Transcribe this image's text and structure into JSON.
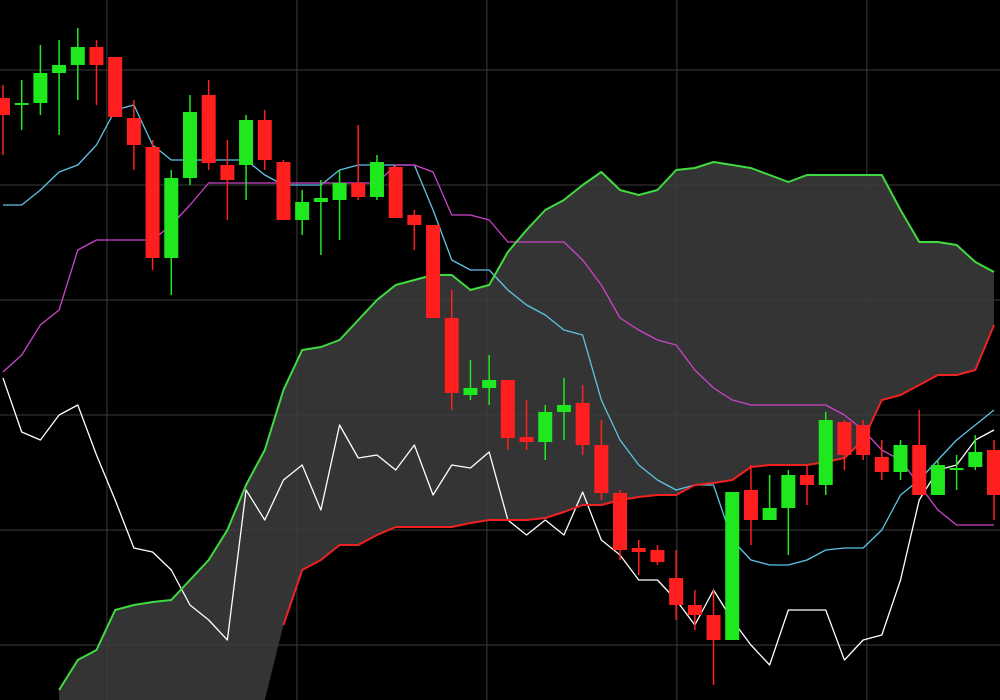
{
  "chart_data": {
    "type": "candlestick",
    "x": [
      0,
      1,
      2,
      3,
      4,
      5,
      6,
      7,
      8,
      9,
      10,
      11,
      12,
      13,
      14,
      15,
      16,
      17,
      18,
      19,
      20,
      21,
      22,
      23,
      24,
      25,
      26,
      27,
      28,
      29,
      30,
      31,
      32,
      33,
      34,
      35,
      36,
      37,
      38,
      39,
      40,
      41,
      42,
      43,
      44,
      45,
      46,
      47,
      48,
      49,
      50,
      51,
      52,
      53
    ],
    "open": [
      602,
      595,
      597,
      627,
      635,
      653,
      643,
      582,
      553,
      442,
      522,
      605,
      535,
      535,
      580,
      538,
      480,
      498,
      500,
      517,
      503,
      533,
      485,
      475,
      382,
      305,
      312,
      320,
      263,
      258,
      288,
      297,
      255,
      207,
      152,
      150,
      122,
      95,
      85,
      60,
      210,
      180,
      192,
      225,
      215,
      278,
      275,
      243,
      228,
      255,
      205,
      230,
      233,
      250
    ],
    "high": [
      615,
      620,
      655,
      660,
      672,
      660,
      643,
      600,
      560,
      530,
      605,
      620,
      560,
      585,
      590,
      540,
      510,
      520,
      530,
      575,
      545,
      535,
      490,
      475,
      410,
      340,
      345,
      320,
      300,
      295,
      322,
      315,
      280,
      210,
      160,
      155,
      150,
      110,
      110,
      208,
      235,
      225,
      230,
      235,
      288,
      280,
      280,
      260,
      260,
      290,
      240,
      245,
      265,
      260
    ],
    "low": [
      545,
      570,
      585,
      565,
      600,
      595,
      583,
      530,
      430,
      405,
      515,
      530,
      480,
      500,
      530,
      480,
      465,
      445,
      460,
      500,
      500,
      482,
      450,
      382,
      290,
      300,
      295,
      250,
      250,
      240,
      260,
      245,
      200,
      140,
      125,
      135,
      80,
      70,
      15,
      60,
      155,
      180,
      145,
      195,
      205,
      230,
      240,
      220,
      220,
      205,
      205,
      210,
      230,
      180
    ],
    "close": [
      585,
      597,
      627,
      635,
      653,
      635,
      583,
      555,
      442,
      522,
      588,
      537,
      520,
      580,
      540,
      480,
      498,
      502,
      517,
      503,
      538,
      482,
      475,
      382,
      307,
      312,
      320,
      262,
      258,
      288,
      295,
      255,
      207,
      150,
      148,
      138,
      95,
      85,
      60,
      208,
      180,
      192,
      225,
      215,
      280,
      245,
      245,
      228,
      255,
      205,
      235,
      232,
      248,
      205
    ],
    "up_color": "#1fe81f",
    "down_color": "#ff1f1f",
    "series": [
      {
        "color": "#5ec4e6",
        "values": [
          495,
          495,
          510,
          528,
          535,
          555,
          590,
          595,
          555,
          540,
          540,
          540,
          540,
          540,
          525,
          515,
          515,
          515,
          530,
          535,
          535,
          535,
          535,
          490,
          440,
          430,
          430,
          410,
          395,
          385,
          370,
          365,
          300,
          260,
          235,
          220,
          210,
          215,
          215,
          160,
          140,
          135,
          135,
          140,
          150,
          152,
          152,
          170,
          205,
          220,
          240,
          260,
          275,
          290
        ]
      },
      {
        "color": "#cc44cc",
        "values": [
          328,
          345,
          375,
          390,
          450,
          460,
          460,
          460,
          460,
          475,
          495,
          517,
          517,
          517,
          517,
          517,
          517,
          517,
          517,
          517,
          517,
          535,
          535,
          528,
          485,
          485,
          480,
          458,
          458,
          458,
          458,
          440,
          415,
          382,
          370,
          360,
          355,
          330,
          312,
          300,
          295,
          295,
          295,
          295,
          295,
          285,
          270,
          250,
          240,
          215,
          190,
          175,
          175,
          175
        ]
      },
      {
        "color": "#ffffff",
        "values": [
          322,
          268,
          260,
          285,
          295,
          245,
          200,
          152,
          148,
          130,
          95,
          80,
          60,
          210,
          180,
          220,
          235,
          190,
          275,
          242,
          245,
          230,
          255,
          205,
          235,
          232,
          248,
          180,
          165,
          180,
          165,
          208,
          160,
          145,
          120,
          120,
          100,
          75,
          110,
          80,
          55,
          35,
          90,
          90,
          90,
          40,
          60,
          65,
          120,
          200,
          230,
          235,
          260,
          270
        ]
      },
      {
        "color": "#3fdc3f",
        "values": [
          null,
          null,
          null,
          10,
          40,
          50,
          90,
          95,
          98,
          100,
          120,
          140,
          170,
          215,
          250,
          310,
          350,
          353,
          360,
          380,
          400,
          415,
          420,
          425,
          425,
          410,
          415,
          448,
          470,
          490,
          500,
          515,
          528,
          510,
          505,
          510,
          530,
          532,
          538,
          535,
          532,
          525,
          518,
          525,
          525,
          525,
          525,
          525,
          490,
          458,
          458,
          455,
          438,
          428
        ]
      },
      {
        "color": "#ee2222",
        "values": [
          null,
          null,
          null,
          null,
          null,
          null,
          null,
          null,
          null,
          null,
          null,
          null,
          null,
          null,
          null,
          75,
          130,
          140,
          155,
          155,
          165,
          173,
          173,
          173,
          173,
          177,
          180,
          180,
          180,
          182,
          188,
          195,
          195,
          200,
          203,
          205,
          205,
          215,
          217,
          220,
          233,
          235,
          235,
          235,
          238,
          242,
          260,
          300,
          305,
          315,
          325,
          325,
          330,
          375
        ]
      }
    ],
    "cloud_color": "#3a3a3a",
    "xlim": [
      -0.16,
      53.32
    ],
    "ylim": [
      0,
      700
    ],
    "xticks": [
      5.56,
      15.72,
      25.88,
      36.04,
      46.2
    ],
    "yticks": [
      55,
      170,
      285,
      400,
      515,
      630
    ],
    "grid": true
  }
}
